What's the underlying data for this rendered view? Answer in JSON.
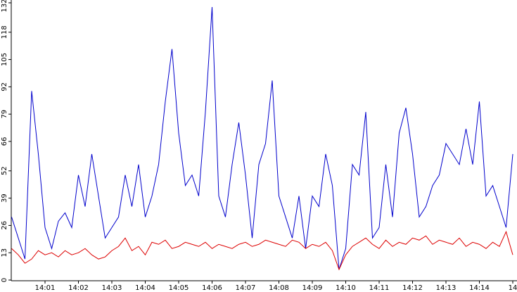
{
  "chart_data": {
    "type": "line",
    "categories": [
      null,
      null,
      null,
      null,
      null,
      "14:01",
      null,
      null,
      null,
      null,
      "14:02",
      null,
      null,
      null,
      null,
      "14:03",
      null,
      null,
      null,
      null,
      "14:04",
      null,
      null,
      null,
      null,
      "14:05",
      null,
      null,
      null,
      null,
      "14:06",
      null,
      null,
      null,
      null,
      "14:07",
      null,
      null,
      null,
      null,
      "14:08",
      null,
      null,
      null,
      null,
      "14:09",
      null,
      null,
      null,
      null,
      "14:10",
      null,
      null,
      null,
      null,
      "14:11",
      null,
      null,
      null,
      null,
      "14:12",
      null,
      null,
      null,
      null,
      "14:13",
      null,
      null,
      null,
      null,
      "14:14",
      null,
      null,
      null,
      null,
      "14"
    ],
    "series": [
      {
        "color": "#0000cc",
        "values": [
          30,
          20,
          10,
          90,
          60,
          25,
          15,
          28,
          32,
          25,
          50,
          35,
          60,
          40,
          20,
          25,
          30,
          50,
          35,
          55,
          30,
          40,
          55,
          85,
          110,
          70,
          45,
          50,
          40,
          80,
          130,
          40,
          30,
          55,
          75,
          50,
          20,
          55,
          65,
          95,
          40,
          30,
          20,
          40,
          15,
          40,
          35,
          60,
          45,
          5,
          15,
          55,
          50,
          80,
          20,
          25,
          55,
          30,
          70,
          82,
          60,
          30,
          35,
          45,
          50,
          65,
          60,
          55,
          72,
          55,
          85,
          40,
          45,
          35,
          25,
          60
        ]
      },
      {
        "color": "#dd0000",
        "values": [
          15,
          12,
          8,
          10,
          14,
          12,
          13,
          11,
          14,
          12,
          13,
          15,
          12,
          10,
          11,
          14,
          16,
          20,
          14,
          16,
          12,
          18,
          17,
          19,
          15,
          16,
          18,
          17,
          16,
          18,
          15,
          17,
          16,
          15,
          17,
          18,
          16,
          17,
          19,
          18,
          17,
          16,
          19,
          18,
          15,
          17,
          16,
          18,
          14,
          5,
          12,
          16,
          18,
          20,
          17,
          15,
          19,
          16,
          18,
          17,
          20,
          19,
          21,
          17,
          19,
          18,
          17,
          20,
          16,
          18,
          17,
          15,
          18,
          16,
          23,
          12
        ]
      }
    ],
    "ylim": [
      0,
      132
    ],
    "yticks": [
      0,
      13,
      26,
      39,
      52,
      66,
      79,
      92,
      105,
      118,
      132
    ]
  }
}
